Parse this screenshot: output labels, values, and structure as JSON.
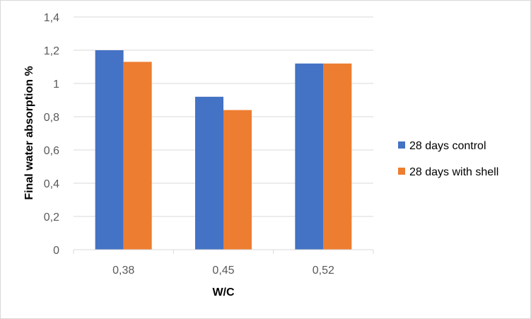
{
  "chart_data": {
    "type": "bar",
    "categories": [
      "0,38",
      "0,45",
      "0,52"
    ],
    "series": [
      {
        "name": "28 days control",
        "values": [
          1.2,
          0.92,
          1.12
        ],
        "color": "#4472c4"
      },
      {
        "name": "28 days with shell",
        "values": [
          1.13,
          0.84,
          1.12
        ],
        "color": "#ed7d31"
      }
    ],
    "xlabel": "W/C",
    "ylabel": "Final water absorption %",
    "ylim": [
      0,
      1.4
    ],
    "yticks": [
      "0",
      "0,2",
      "0,4",
      "0,6",
      "0,8",
      "1",
      "1,2",
      "1,4"
    ],
    "grid": true,
    "legend_position": "right"
  }
}
